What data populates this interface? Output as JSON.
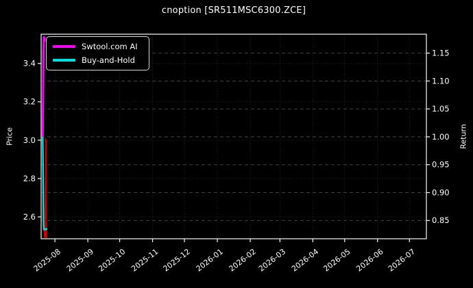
{
  "chart_data": {
    "type": "line",
    "title": "cnoption [SR511MSC6300.ZCE]",
    "grid": true,
    "legend_position": "upper-left",
    "theme": {
      "background": "#000000",
      "foreground": "#ffffff",
      "spine": "#e8e8e8",
      "grid_dotted": "#303030",
      "grid_dashed": "#4a4a4a"
    },
    "x_axis": {
      "range_days": [
        0,
        363
      ],
      "ticks": [
        {
          "label": "2025-08",
          "day": 13
        },
        {
          "label": "2025-09",
          "day": 44
        },
        {
          "label": "2025-10",
          "day": 74
        },
        {
          "label": "2025-11",
          "day": 105
        },
        {
          "label": "2025-12",
          "day": 135
        },
        {
          "label": "2026-01",
          "day": 166
        },
        {
          "label": "2026-02",
          "day": 197
        },
        {
          "label": "2026-03",
          "day": 225
        },
        {
          "label": "2026-04",
          "day": 256
        },
        {
          "label": "2026-05",
          "day": 286
        },
        {
          "label": "2026-06",
          "day": 317
        },
        {
          "label": "2026-07",
          "day": 347
        }
      ]
    },
    "left_axis": {
      "label": "Price",
      "range": [
        2.486,
        3.5525
      ],
      "ticks": [
        {
          "label": "3.4",
          "value": 3.4
        },
        {
          "label": "3.2",
          "value": 3.2
        },
        {
          "label": "3.0",
          "value": 3.0
        },
        {
          "label": "2.8",
          "value": 2.8
        },
        {
          "label": "2.6",
          "value": 2.6
        }
      ]
    },
    "right_axis": {
      "label": "Return",
      "range": [
        0.8173,
        1.1839
      ],
      "ticks": [
        {
          "label": "1.15",
          "value": 1.15
        },
        {
          "label": "1.10",
          "value": 1.1
        },
        {
          "label": "1.05",
          "value": 1.05
        },
        {
          "label": "1.00",
          "value": 1.0
        },
        {
          "label": "0.95",
          "value": 0.95
        },
        {
          "label": "0.90",
          "value": 0.9
        },
        {
          "label": "0.85",
          "value": 0.85
        }
      ]
    },
    "legend": [
      {
        "label": "Swtool.com AI",
        "color": "#ff00ff"
      },
      {
        "label": "Buy-and-Hold",
        "color": "#00e0e0"
      }
    ],
    "series": [
      {
        "name": "price",
        "axis": "left",
        "color": "#d40000",
        "width": 2,
        "points": [
          [
            1.5,
            3.02
          ],
          [
            2.0,
            2.8
          ],
          [
            2.5,
            2.545
          ],
          [
            3.0,
            2.52
          ],
          [
            3.5,
            2.493
          ],
          [
            4.0,
            2.55
          ],
          [
            4.5,
            3.005
          ],
          [
            4.8,
            2.492
          ],
          [
            5.2,
            2.52
          ]
        ]
      },
      {
        "name": "Buy-and-Hold",
        "axis": "right",
        "color": "#00e0e0",
        "width": 2.4,
        "points": [
          [
            1.5,
            1.0
          ],
          [
            1.9,
            0.93
          ],
          [
            2.3,
            0.845
          ],
          [
            2.6,
            0.834
          ],
          [
            5.0,
            0.834
          ],
          [
            5.2,
            0.8365
          ]
        ]
      },
      {
        "name": "Swtool.com AI",
        "axis": "right",
        "color": "#ff00ff",
        "width": 3,
        "points": [
          [
            1.5,
            1.0
          ],
          [
            1.9,
            1.075
          ],
          [
            2.3,
            1.16
          ],
          [
            2.6,
            1.1785
          ],
          [
            3.1,
            1.172
          ],
          [
            3.4,
            1.1785
          ]
        ]
      }
    ]
  }
}
